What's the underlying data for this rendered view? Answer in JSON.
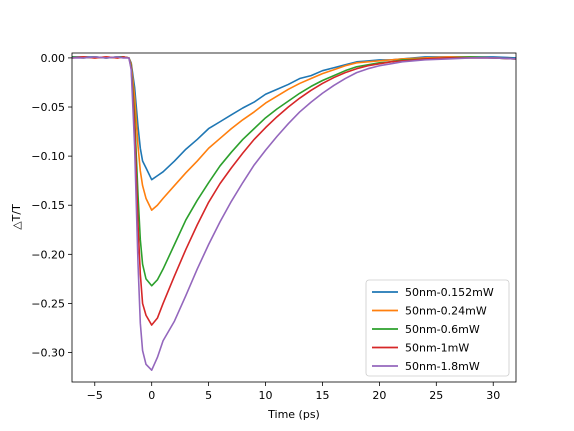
{
  "chart_data": {
    "type": "line",
    "xlabel": "Time (ps)",
    "ylabel": "△T/T",
    "xlim": [
      -7,
      32
    ],
    "ylim": [
      -0.33,
      0.005
    ],
    "xticks": [
      -5,
      0,
      5,
      10,
      15,
      20,
      25,
      30
    ],
    "xtick_labels": [
      "−5",
      "0",
      "5",
      "10",
      "15",
      "20",
      "25",
      "30"
    ],
    "yticks": [
      0.0,
      -0.05,
      -0.1,
      -0.15,
      -0.2,
      -0.25,
      -0.3
    ],
    "ytick_labels": [
      "0.00",
      "−0.05",
      "−0.10",
      "−0.15",
      "−0.20",
      "−0.25",
      "−0.30"
    ],
    "grid": false,
    "legend_position": "lower-right",
    "x": [
      -7,
      -6,
      -5,
      -4,
      -3,
      -2.5,
      -2,
      -1.8,
      -1.5,
      -1.2,
      -1.0,
      -0.8,
      -0.5,
      0,
      0.5,
      1,
      2,
      3,
      4,
      5,
      6,
      7,
      8,
      9,
      10,
      11,
      12,
      13,
      14,
      15,
      16,
      17,
      18,
      19,
      20,
      21,
      22,
      24,
      26,
      28,
      30,
      32
    ],
    "series": [
      {
        "name": "50nm-0.152mW",
        "color": "#1f77b4",
        "values": [
          0.001,
          0.001,
          0.001,
          0.0,
          0.001,
          0.001,
          0.0,
          -0.005,
          -0.03,
          -0.07,
          -0.092,
          -0.105,
          -0.112,
          -0.124,
          -0.12,
          -0.116,
          -0.105,
          -0.093,
          -0.083,
          -0.072,
          -0.065,
          -0.058,
          -0.051,
          -0.045,
          -0.037,
          -0.032,
          -0.027,
          -0.021,
          -0.018,
          -0.013,
          -0.01,
          -0.007,
          -0.004,
          -0.003,
          -0.002,
          -0.002,
          -0.001,
          0.001,
          0.001,
          0.001,
          0.001,
          0.0
        ]
      },
      {
        "name": "50nm-0.24mW",
        "color": "#ff7f0e",
        "values": [
          0.0,
          0.001,
          0.0,
          0.001,
          0.0,
          0.001,
          0.0,
          -0.006,
          -0.04,
          -0.09,
          -0.115,
          -0.13,
          -0.143,
          -0.155,
          -0.15,
          -0.143,
          -0.13,
          -0.117,
          -0.105,
          -0.092,
          -0.082,
          -0.072,
          -0.063,
          -0.055,
          -0.046,
          -0.039,
          -0.032,
          -0.026,
          -0.021,
          -0.016,
          -0.012,
          -0.008,
          -0.005,
          -0.004,
          -0.003,
          -0.002,
          -0.001,
          0.0,
          0.001,
          0.001,
          0.0,
          -0.001
        ]
      },
      {
        "name": "50nm-0.6mW",
        "color": "#2ca02c",
        "values": [
          0.001,
          0.0,
          0.001,
          0.0,
          0.001,
          0.001,
          0.0,
          -0.008,
          -0.06,
          -0.14,
          -0.185,
          -0.21,
          -0.225,
          -0.232,
          -0.226,
          -0.215,
          -0.19,
          -0.165,
          -0.145,
          -0.127,
          -0.11,
          -0.096,
          -0.083,
          -0.072,
          -0.061,
          -0.052,
          -0.044,
          -0.036,
          -0.029,
          -0.023,
          -0.018,
          -0.013,
          -0.009,
          -0.007,
          -0.005,
          -0.004,
          -0.002,
          -0.001,
          0.0,
          0.001,
          0.0,
          -0.001
        ]
      },
      {
        "name": "50nm-1mW",
        "color": "#d62728",
        "values": [
          0.0,
          0.001,
          0.0,
          0.001,
          0.0,
          0.001,
          0.0,
          -0.01,
          -0.07,
          -0.17,
          -0.22,
          -0.25,
          -0.262,
          -0.272,
          -0.265,
          -0.25,
          -0.222,
          -0.195,
          -0.17,
          -0.147,
          -0.128,
          -0.112,
          -0.097,
          -0.083,
          -0.071,
          -0.06,
          -0.05,
          -0.041,
          -0.033,
          -0.026,
          -0.02,
          -0.015,
          -0.011,
          -0.008,
          -0.006,
          -0.004,
          -0.003,
          -0.001,
          0.0,
          0.0,
          0.0,
          -0.001
        ]
      },
      {
        "name": "50nm-1.8mW",
        "color": "#9467bd",
        "values": [
          0.0,
          0.0,
          0.001,
          0.0,
          0.001,
          0.0,
          0.0,
          -0.012,
          -0.09,
          -0.21,
          -0.27,
          -0.298,
          -0.312,
          -0.318,
          -0.305,
          -0.288,
          -0.268,
          -0.242,
          -0.215,
          -0.19,
          -0.167,
          -0.146,
          -0.127,
          -0.109,
          -0.094,
          -0.08,
          -0.067,
          -0.055,
          -0.045,
          -0.036,
          -0.028,
          -0.021,
          -0.015,
          -0.011,
          -0.008,
          -0.006,
          -0.004,
          -0.002,
          -0.001,
          0.0,
          0.0,
          -0.001
        ]
      }
    ]
  }
}
